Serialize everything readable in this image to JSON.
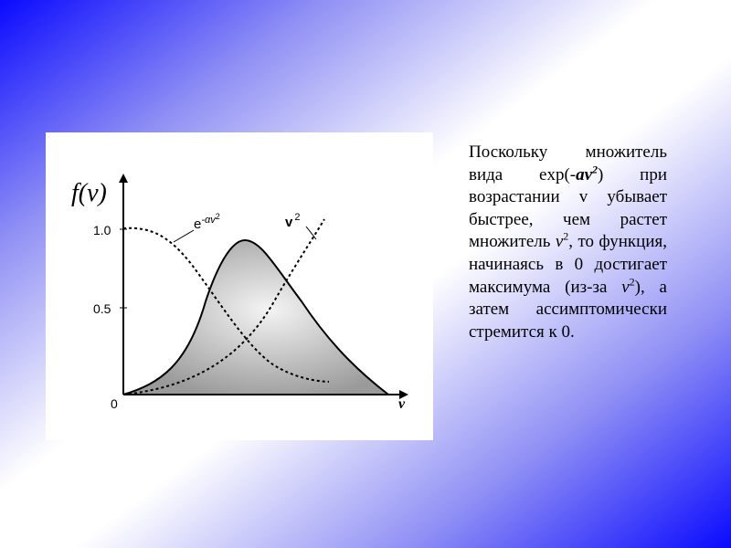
{
  "figure": {
    "y_axis_label": "f(v)",
    "y_ticks": [
      "1.0",
      "0.5",
      "0"
    ],
    "x_axis_label": "v",
    "curve_exp_label": {
      "base": "e",
      "exponent": "-αv",
      "power": "2"
    },
    "curve_v2_label": {
      "base": "v",
      "power": "2"
    }
  },
  "text": {
    "runs": [
      "Поскольку множитель вида exp(-",
      "av",
      "2",
      ") при возрастании v убывает быстрее, чем растет множитель ",
      "v",
      "2",
      ", то функция, начинаясь в 0 достигает максимума (из-за ",
      "v",
      "2",
      "), а затем ассимптомически стремится к 0."
    ]
  }
}
